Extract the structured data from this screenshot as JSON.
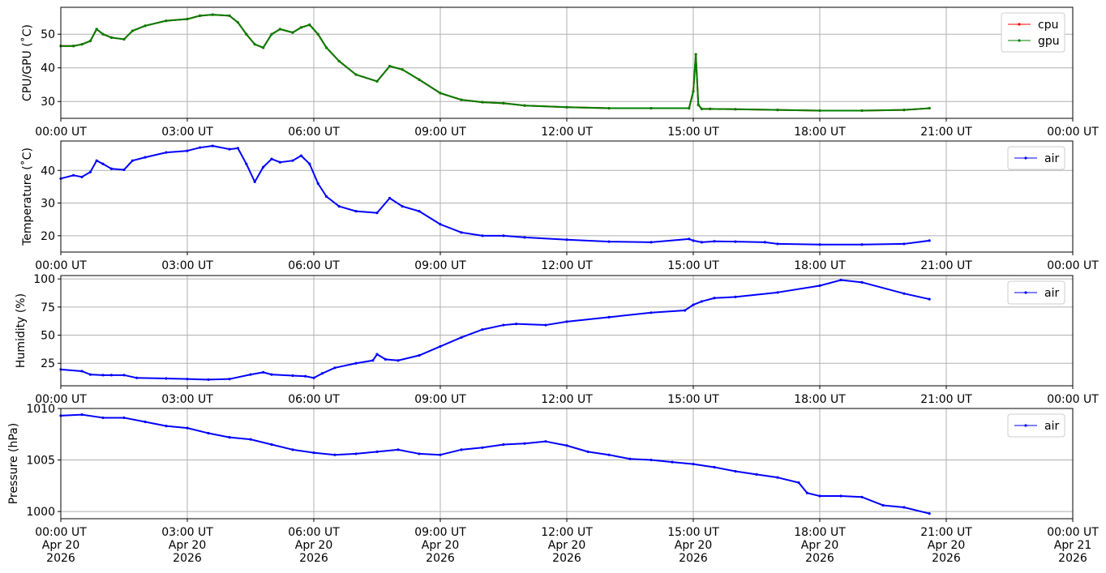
{
  "x_axis": {
    "type": "datetime",
    "range": [
      "2026-04-20 00:00",
      "2026-04-21 00:00"
    ],
    "ticks": [
      {
        "time": "00:00 UT",
        "day": "Apr 20",
        "year": "2026",
        "hours": 0
      },
      {
        "time": "03:00 UT",
        "day": "Apr 20",
        "year": "2026",
        "hours": 3
      },
      {
        "time": "06:00 UT",
        "day": "Apr 20",
        "year": "2026",
        "hours": 6
      },
      {
        "time": "09:00 UT",
        "day": "Apr 20",
        "year": "2026",
        "hours": 9
      },
      {
        "time": "12:00 UT",
        "day": "Apr 20",
        "year": "2026",
        "hours": 12
      },
      {
        "time": "15:00 UT",
        "day": "Apr 20",
        "year": "2026",
        "hours": 15
      },
      {
        "time": "18:00 UT",
        "day": "Apr 20",
        "year": "2026",
        "hours": 18
      },
      {
        "time": "21:00 UT",
        "day": "Apr 20",
        "year": "2026",
        "hours": 21
      },
      {
        "time": "00:00 UT",
        "day": "Apr 21",
        "year": "2026",
        "hours": 24
      }
    ]
  },
  "colors": {
    "cpu": "#ff0000",
    "gpu": "#008000",
    "air": "#0000ff",
    "grid": "#b0b0b0"
  },
  "chart_data": [
    {
      "type": "line",
      "ylabel": "CPU/GPU (˚C)",
      "ylim": [
        25,
        58
      ],
      "yticks": [
        30,
        40,
        50
      ],
      "grid": true,
      "legend_placement": "top-right",
      "x_unit": "hours since 2026-04-20 00:00 UT",
      "series": [
        {
          "name": "cpu",
          "color": "#ff0000",
          "x": [
            0,
            0.3,
            0.5,
            0.7,
            0.85,
            1.0,
            1.2,
            1.5,
            1.7,
            2.0,
            2.5,
            3.0,
            3.3,
            3.6,
            4.0,
            4.2,
            4.4,
            4.6,
            4.8,
            5.0,
            5.2,
            5.5,
            5.7,
            5.9,
            6.1,
            6.3,
            6.6,
            7.0,
            7.5,
            7.8,
            8.1,
            8.5,
            9.0,
            9.5,
            10.0,
            10.5,
            11.0,
            12.0,
            13.0,
            14.0,
            14.9,
            15.0,
            15.06,
            15.12,
            15.2,
            15.4,
            16.0,
            17.0,
            18.0,
            19.0,
            20.0,
            20.6
          ],
          "values": [
            46.5,
            46.5,
            47,
            48,
            51.5,
            50,
            49,
            48.5,
            51,
            52.5,
            54,
            54.5,
            55.5,
            55.8,
            55.5,
            53.5,
            50,
            47,
            46,
            50,
            51.5,
            50.5,
            52,
            52.8,
            50,
            46,
            42,
            38,
            36,
            40.5,
            39.5,
            36.5,
            32.5,
            30.5,
            29.8,
            29.5,
            28.8,
            28.3,
            28,
            28,
            28,
            33,
            44,
            29,
            27.8,
            27.8,
            27.7,
            27.5,
            27.3,
            27.3,
            27.5,
            28
          ]
        },
        {
          "name": "gpu",
          "color": "#008000",
          "x": [
            0,
            0.3,
            0.5,
            0.7,
            0.85,
            1.0,
            1.2,
            1.5,
            1.7,
            2.0,
            2.5,
            3.0,
            3.3,
            3.6,
            4.0,
            4.2,
            4.4,
            4.6,
            4.8,
            5.0,
            5.2,
            5.5,
            5.7,
            5.9,
            6.1,
            6.3,
            6.6,
            7.0,
            7.5,
            7.8,
            8.1,
            8.5,
            9.0,
            9.5,
            10.0,
            10.5,
            11.0,
            12.0,
            13.0,
            14.0,
            14.9,
            15.0,
            15.06,
            15.12,
            15.2,
            15.4,
            16.0,
            17.0,
            18.0,
            19.0,
            20.0,
            20.6
          ],
          "values": [
            46.5,
            46.5,
            47,
            48,
            51.5,
            50,
            49,
            48.5,
            51,
            52.5,
            54,
            54.5,
            55.5,
            55.8,
            55.5,
            53.5,
            50,
            47,
            46,
            50,
            51.5,
            50.5,
            52,
            52.8,
            50,
            46,
            42,
            38,
            36,
            40.5,
            39.5,
            36.5,
            32.5,
            30.5,
            29.8,
            29.5,
            28.8,
            28.3,
            28,
            28,
            28,
            33,
            44,
            29,
            27.8,
            27.8,
            27.7,
            27.5,
            27.3,
            27.3,
            27.5,
            28
          ]
        }
      ]
    },
    {
      "type": "line",
      "ylabel": "Temperature (˚C)",
      "ylim": [
        15,
        49
      ],
      "yticks": [
        20,
        30,
        40
      ],
      "grid": true,
      "legend_placement": "top-right",
      "x_unit": "hours since 2026-04-20 00:00 UT",
      "series": [
        {
          "name": "air",
          "color": "#0000ff",
          "x": [
            0,
            0.3,
            0.5,
            0.7,
            0.85,
            1.0,
            1.2,
            1.5,
            1.7,
            2.0,
            2.5,
            3.0,
            3.3,
            3.6,
            4.0,
            4.2,
            4.4,
            4.6,
            4.8,
            5.0,
            5.2,
            5.5,
            5.7,
            5.9,
            6.1,
            6.3,
            6.6,
            7.0,
            7.5,
            7.8,
            8.1,
            8.5,
            9.0,
            9.5,
            10.0,
            10.5,
            11.0,
            12.0,
            13.0,
            14.0,
            14.9,
            15.0,
            15.2,
            15.5,
            16.0,
            16.7,
            17.0,
            18.0,
            19.0,
            20.0,
            20.6
          ],
          "values": [
            37.5,
            38.5,
            38,
            39.5,
            43,
            42,
            40.5,
            40.2,
            43,
            44,
            45.5,
            46,
            47,
            47.5,
            46.5,
            46.8,
            42,
            36.5,
            41,
            43.5,
            42.5,
            43,
            44.5,
            42,
            36,
            32,
            29,
            27.5,
            27,
            31.5,
            29,
            27.5,
            23.5,
            21,
            20,
            20,
            19.5,
            18.8,
            18.2,
            18,
            19,
            18.5,
            18,
            18.3,
            18.2,
            18,
            17.5,
            17.3,
            17.3,
            17.5,
            18.5
          ]
        }
      ]
    },
    {
      "type": "line",
      "ylabel": "Humidity (%)",
      "ylim": [
        5,
        103
      ],
      "yticks": [
        25,
        50,
        75,
        100
      ],
      "grid": true,
      "legend_placement": "top-right",
      "x_unit": "hours since 2026-04-20 00:00 UT",
      "series": [
        {
          "name": "air",
          "color": "#0000ff",
          "x": [
            0,
            0.5,
            0.7,
            1.0,
            1.2,
            1.5,
            1.8,
            2.5,
            3.0,
            3.5,
            4.0,
            4.5,
            4.8,
            5.0,
            5.5,
            5.8,
            6.0,
            6.2,
            6.5,
            7.0,
            7.4,
            7.5,
            7.7,
            8.0,
            8.5,
            9.0,
            9.5,
            10.0,
            10.5,
            10.8,
            11.5,
            12.0,
            13.0,
            14.0,
            14.8,
            15.0,
            15.2,
            15.5,
            16.0,
            17.0,
            18.0,
            18.5,
            19.0,
            20.0,
            20.6
          ],
          "values": [
            19.5,
            18,
            15,
            14.5,
            14.5,
            14.5,
            12,
            11.5,
            11,
            10.5,
            11,
            15,
            17,
            15,
            14,
            13.5,
            12,
            16,
            21,
            25,
            27.5,
            33,
            28.5,
            27.5,
            32,
            40,
            48,
            55,
            59,
            60,
            59,
            62,
            66,
            70,
            72,
            77,
            80,
            83,
            84,
            88,
            94,
            99,
            97,
            87,
            82
          ]
        }
      ]
    },
    {
      "type": "line",
      "ylabel": "Pressure (hPa)",
      "ylim": [
        999.3,
        1010
      ],
      "yticks": [
        1000,
        1005,
        1010
      ],
      "grid": true,
      "legend_placement": "top-right",
      "x_unit": "hours since 2026-04-20 00:00 UT",
      "series": [
        {
          "name": "air",
          "color": "#0000ff",
          "x": [
            0,
            0.5,
            1.0,
            1.5,
            2.0,
            2.5,
            3.0,
            3.5,
            4.0,
            4.5,
            5.0,
            5.5,
            6.0,
            6.5,
            7.0,
            7.5,
            8.0,
            8.5,
            9.0,
            9.5,
            10.0,
            10.5,
            11.0,
            11.5,
            12.0,
            12.5,
            13.0,
            13.5,
            14.0,
            14.5,
            15.0,
            15.5,
            16.0,
            16.5,
            17.0,
            17.5,
            17.7,
            18.0,
            18.5,
            19.0,
            19.5,
            20.0,
            20.6
          ],
          "values": [
            1009.3,
            1009.4,
            1009.1,
            1009.1,
            1008.7,
            1008.3,
            1008.1,
            1007.6,
            1007.2,
            1007,
            1006.5,
            1006.0,
            1005.7,
            1005.5,
            1005.6,
            1005.8,
            1006.0,
            1005.6,
            1005.5,
            1006.0,
            1006.2,
            1006.5,
            1006.6,
            1006.8,
            1006.4,
            1005.8,
            1005.5,
            1005.1,
            1005.0,
            1004.8,
            1004.6,
            1004.3,
            1003.9,
            1003.6,
            1003.3,
            1002.8,
            1001.8,
            1001.5,
            1001.5,
            1001.4,
            1000.6,
            1000.4,
            999.8
          ]
        }
      ]
    }
  ]
}
